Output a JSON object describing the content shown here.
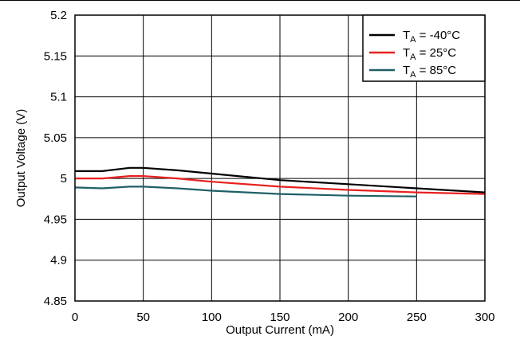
{
  "chart_data": {
    "type": "line",
    "title": "",
    "xlabel": "Output Current (mA)",
    "ylabel": "Output Voltage (V)",
    "xlim": [
      0,
      300
    ],
    "ylim": [
      4.85,
      5.2
    ],
    "x_ticks": [
      0,
      50,
      100,
      150,
      200,
      250,
      300
    ],
    "x_tick_labels": [
      "0",
      "50",
      "100",
      "150",
      "200",
      "250",
      "300"
    ],
    "y_ticks": [
      4.85,
      4.9,
      4.95,
      5.0,
      5.05,
      5.1,
      5.15,
      5.2
    ],
    "y_tick_labels": [
      "4.85",
      "4.9",
      "4.95",
      "5",
      "5.05",
      "5.1",
      "5.15",
      "5.2"
    ],
    "grid": true,
    "legend_position": "top-right",
    "series": [
      {
        "name_main": "T",
        "name_sub": "A",
        "name_rest": " = -40°C",
        "color": "#000000",
        "x": [
          0,
          20,
          40,
          50,
          75,
          100,
          150,
          200,
          250,
          300
        ],
        "y": [
          5.009,
          5.009,
          5.013,
          5.013,
          5.01,
          5.006,
          4.998,
          4.993,
          4.988,
          4.983
        ]
      },
      {
        "name_main": "T",
        "name_sub": "A",
        "name_rest": " = 25°C",
        "color": "#e8201f",
        "x": [
          0,
          20,
          40,
          50,
          75,
          100,
          150,
          200,
          250,
          300
        ],
        "y": [
          5.0,
          5.0,
          5.003,
          5.003,
          5.0,
          4.996,
          4.99,
          4.986,
          4.983,
          4.981
        ]
      },
      {
        "name_main": "T",
        "name_sub": "A",
        "name_rest": " = 85°C",
        "color": "#1f5f66",
        "x": [
          0,
          20,
          40,
          50,
          75,
          100,
          150,
          200,
          250
        ],
        "y": [
          4.989,
          4.988,
          4.99,
          4.99,
          4.988,
          4.985,
          4.981,
          4.979,
          4.978
        ]
      }
    ]
  }
}
